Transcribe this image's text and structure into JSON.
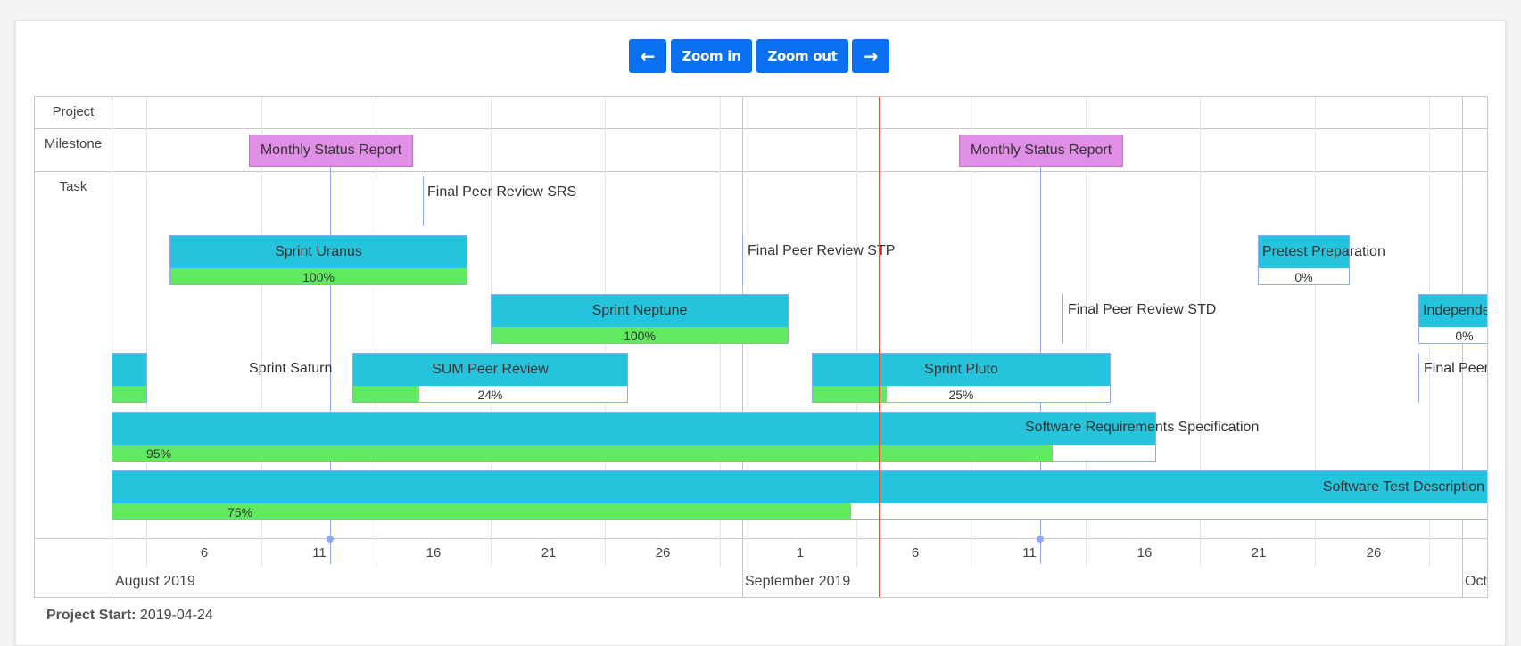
{
  "toolbar": {
    "prev_label": "←",
    "zoom_in_label": "Zoom in",
    "zoom_out_label": "Zoom out",
    "next_label": "→",
    "accent": "#0b6ff2"
  },
  "rows": {
    "project": "Project",
    "milestone": "Milestone",
    "task": "Task"
  },
  "milestones": [
    {
      "name": "Monthly Status Report"
    },
    {
      "name": "Monthly Status Report"
    }
  ],
  "tasks": [
    {
      "name": "Final Peer Review SRS"
    },
    {
      "name": "Sprint Uranus",
      "progress": "100%"
    },
    {
      "name": "Final Peer Review STP"
    },
    {
      "name": "Pretest Preparation",
      "progress": "0%"
    },
    {
      "name": "Sprint Neptune",
      "progress": "100%"
    },
    {
      "name": "Final Peer Review STD"
    },
    {
      "name": "Independent I",
      "progress": "0%"
    },
    {
      "name": "Sprint Saturn"
    },
    {
      "name": "SUM Peer Review",
      "progress": "24%"
    },
    {
      "name": "Sprint Pluto",
      "progress": "25%"
    },
    {
      "name": "Final Peer Rev"
    },
    {
      "name": "Software Requirements Specification",
      "progress": "95%"
    },
    {
      "name": "Software Test Description",
      "progress": "75%"
    }
  ],
  "axis": {
    "ticks": [
      "6",
      "11",
      "16",
      "21",
      "26",
      "1",
      "6",
      "11",
      "16",
      "21",
      "26"
    ],
    "months": [
      "August 2019",
      "September 2019",
      "Octobe"
    ]
  },
  "footer": {
    "label": "Project Start:",
    "value": "2019-04-24"
  },
  "colors": {
    "task_top": "#26c4dc",
    "progress": "#5fea60",
    "milestone": "#e08ee6",
    "today": "#e74c3c"
  }
}
